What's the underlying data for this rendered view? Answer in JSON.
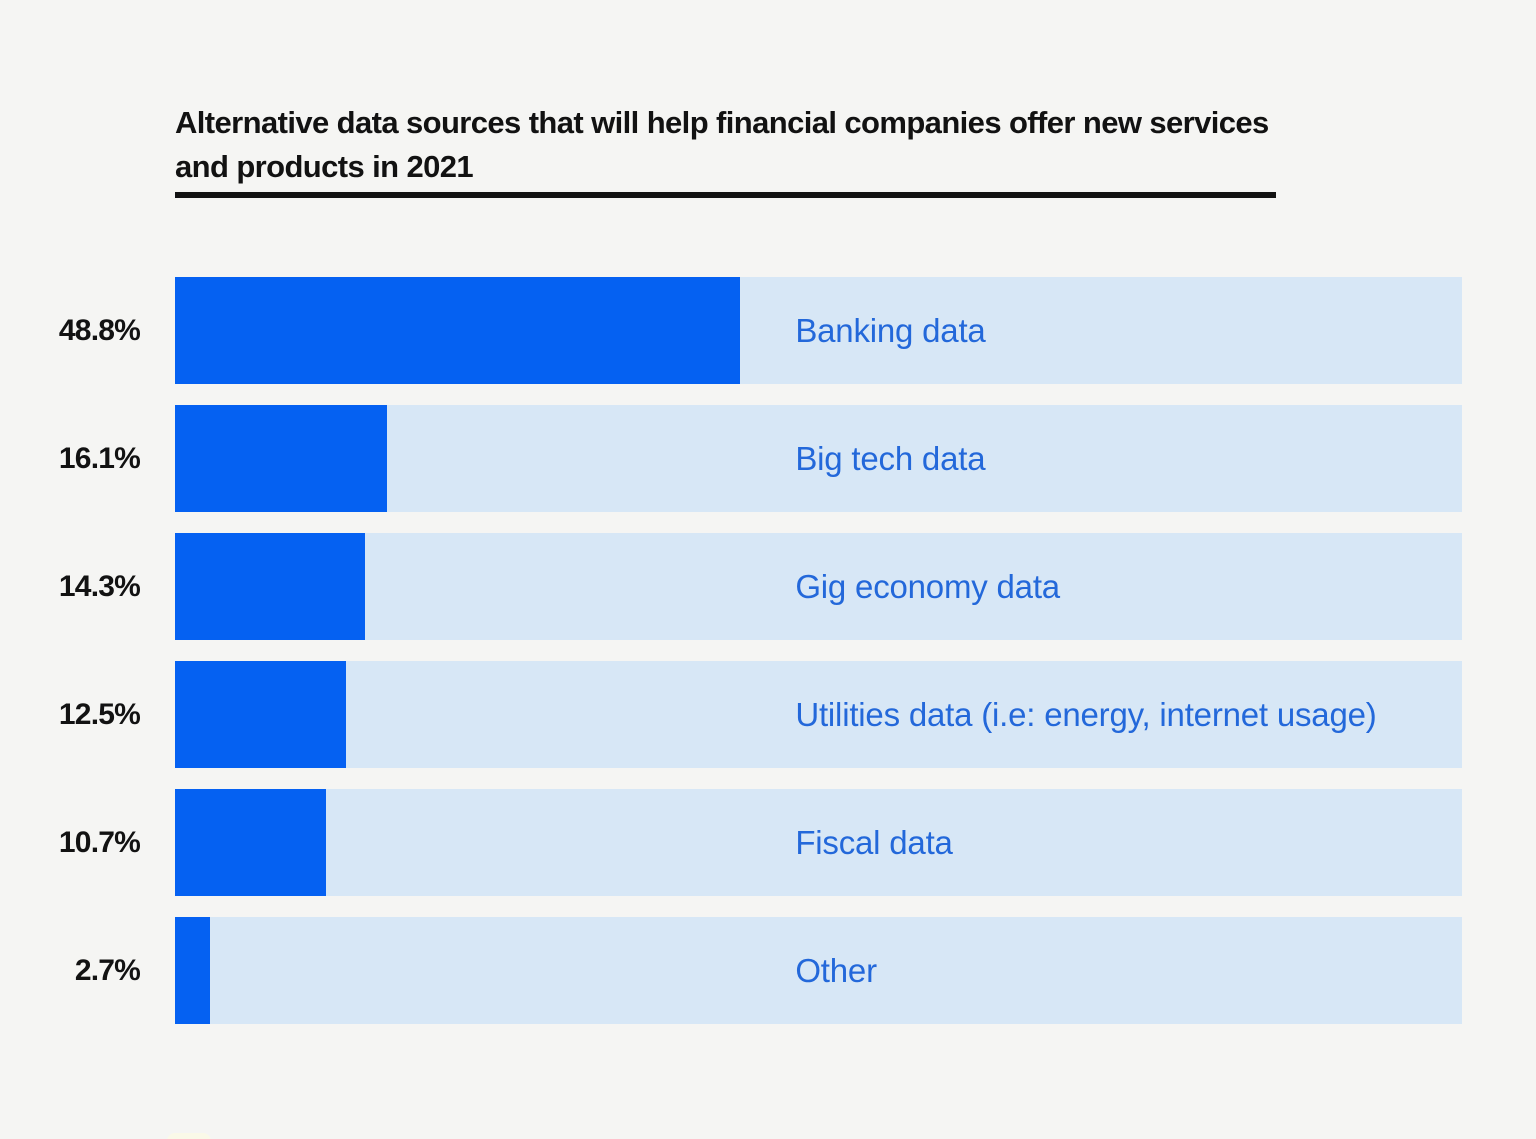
{
  "page": {
    "background": "#F5F5F3"
  },
  "header": {
    "title": "Alternative data sources that will help financial companies offer new services and products in 2021"
  },
  "chart_data": {
    "type": "bar",
    "orientation": "horizontal",
    "title": "Alternative data sources that will help financial companies offer new services and products in 2021",
    "categories": [
      "Banking data",
      "Big tech data",
      "Gig economy data",
      "Utilities data (i.e: energy, internet usage)",
      "Fiscal data",
      "Other"
    ],
    "values": [
      48.8,
      16.1,
      14.3,
      12.5,
      10.7,
      2.7
    ],
    "value_labels": [
      "48.8%",
      "16.1%",
      "14.3%",
      "12.5%",
      "10.7%",
      "2.7%"
    ],
    "unit": "%",
    "xlabel": "",
    "ylabel": "",
    "legend": "none",
    "grid": false,
    "colors": {
      "bar_fill": "#0561F2",
      "bar_track": "#D7E7F6",
      "category_label": "#2368DA",
      "value_label": "#121212",
      "title_text": "#121212",
      "title_underline": "#121212",
      "page_background": "#F5F5F3"
    },
    "layout_hints": {
      "bar_display_pct_of_track": [
        43.9,
        16.5,
        14.8,
        13.3,
        11.7,
        2.7
      ],
      "category_label_offset_pct_of_track": 48.2
    }
  },
  "decor": {
    "bottom_left_cutoff_card_color": "#FAF9E8"
  }
}
